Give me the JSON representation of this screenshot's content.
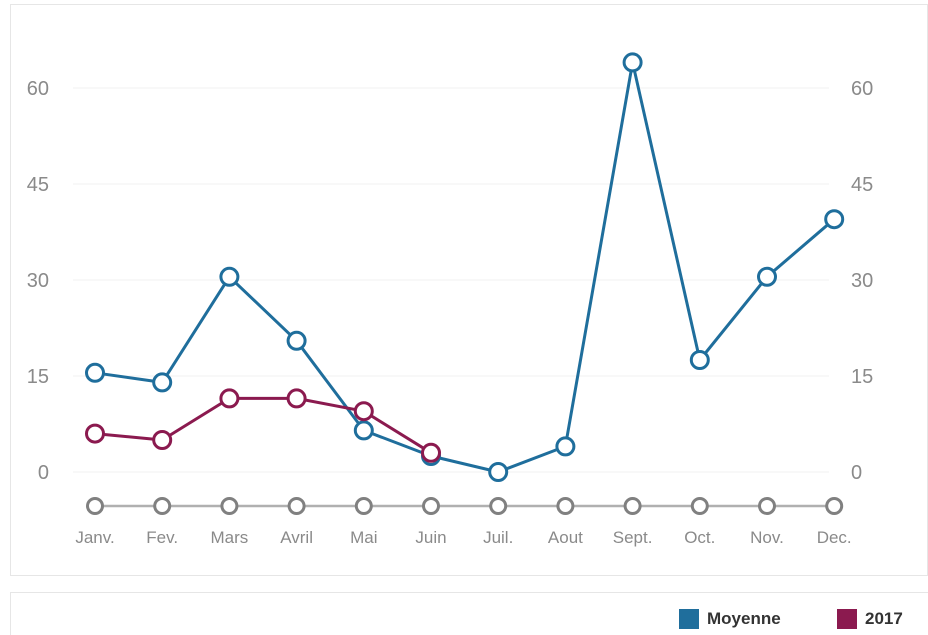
{
  "chart_data": {
    "type": "line",
    "categories": [
      "Janv.",
      "Fev.",
      "Mars",
      "Avril",
      "Mai",
      "Juin",
      "Juil.",
      "Aout",
      "Sept.",
      "Oct.",
      "Nov.",
      "Dec."
    ],
    "ylim": [
      0,
      60
    ],
    "yticks": [
      0,
      15,
      30,
      45,
      60
    ],
    "y_axis_left": true,
    "y_axis_right": true,
    "grid": true,
    "legend_position": "bottom-right",
    "series": [
      {
        "name": "Moyenne",
        "color": "#1f6e9c",
        "values": [
          15.5,
          14,
          30.5,
          20.5,
          6.5,
          2.5,
          0,
          4,
          64,
          17.5,
          30.5,
          39.5
        ]
      },
      {
        "name": "2017",
        "color": "#8b1a4f",
        "values": [
          6,
          5,
          11.5,
          11.5,
          9.5,
          3,
          null,
          null,
          null,
          null,
          null,
          null
        ]
      }
    ],
    "baseline_marker_color": "#808080"
  },
  "legend": {
    "items": [
      {
        "label": "Moyenne",
        "color": "#1f6e9c"
      },
      {
        "label": "2017",
        "color": "#8b1a4f"
      }
    ]
  }
}
